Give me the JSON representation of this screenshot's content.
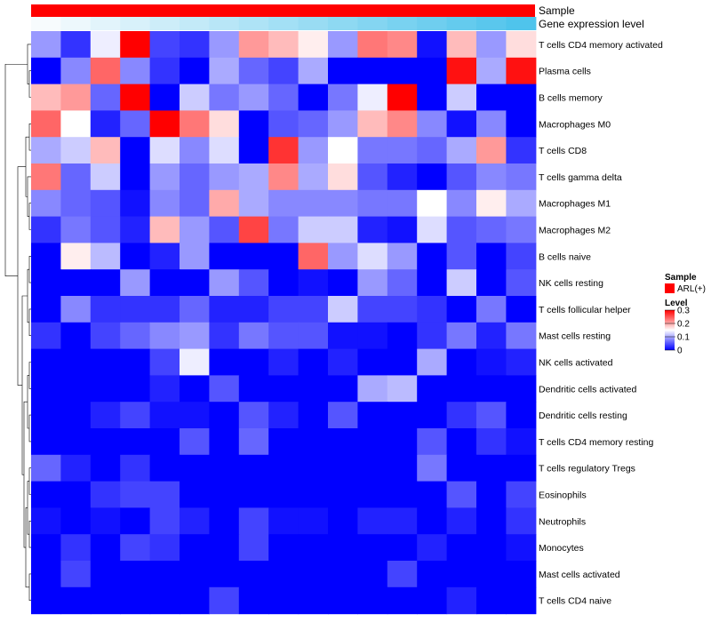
{
  "chart_data": {
    "type": "heatmap",
    "annotations": [
      {
        "name": "Sample",
        "color": "#ff0000"
      },
      {
        "name": "Gene expression level",
        "gradient": [
          "#f7fbfd",
          "#4fc4ec"
        ]
      }
    ],
    "rows": [
      "T cells CD4 memory activated",
      "Plasma cells",
      "B cells memory",
      "Macrophages M0",
      "T cells CD8",
      "T cells gamma delta",
      "Macrophages M1",
      "Macrophages M2",
      "B cells naive",
      "NK cells resting",
      "T cells follicular helper",
      "Mast cells resting",
      "NK cells activated",
      "Dendritic cells activated",
      "Dendritic cells resting",
      "T cells CD4 memory resting",
      "T cells regulatory  Tregs",
      "Eosinophils",
      "Neutrophils",
      "Monocytes",
      "Mast cells activated",
      "T cells CD4 naive"
    ],
    "values": [
      [
        0.09,
        0.03,
        0.14,
        0.3,
        0.04,
        0.03,
        0.09,
        0.21,
        0.19,
        0.16,
        0.09,
        0.23,
        0.22,
        0.01,
        0.19,
        0.09,
        0.17
      ],
      [
        0.0,
        0.08,
        0.24,
        0.08,
        0.03,
        0.0,
        0.1,
        0.06,
        0.04,
        0.1,
        0.0,
        0.0,
        0.0,
        0.0,
        0.29,
        0.1,
        0.29
      ],
      [
        0.19,
        0.21,
        0.06,
        0.3,
        0.0,
        0.12,
        0.07,
        0.09,
        0.06,
        0.0,
        0.07,
        0.14,
        0.3,
        0.0,
        0.12,
        0.0,
        0.0
      ],
      [
        0.24,
        0.15,
        0.02,
        0.06,
        0.3,
        0.23,
        0.17,
        0.0,
        0.05,
        0.06,
        0.09,
        0.19,
        0.22,
        0.08,
        0.01,
        0.08,
        0.0
      ],
      [
        0.1,
        0.12,
        0.19,
        0.0,
        0.13,
        0.08,
        0.13,
        0.0,
        0.27,
        0.09,
        0.15,
        0.07,
        0.07,
        0.06,
        0.1,
        0.21,
        0.03
      ],
      [
        0.23,
        0.06,
        0.12,
        0.0,
        0.09,
        0.06,
        0.09,
        0.1,
        0.22,
        0.1,
        0.17,
        0.05,
        0.02,
        0.0,
        0.05,
        0.08,
        0.07
      ],
      [
        0.08,
        0.06,
        0.05,
        0.01,
        0.08,
        0.06,
        0.2,
        0.1,
        0.08,
        0.08,
        0.08,
        0.07,
        0.07,
        0.15,
        0.08,
        0.16,
        0.1
      ],
      [
        0.03,
        0.07,
        0.05,
        0.02,
        0.19,
        0.09,
        0.05,
        0.26,
        0.07,
        0.12,
        0.12,
        0.02,
        0.01,
        0.13,
        0.05,
        0.06,
        0.07
      ],
      [
        0.0,
        0.16,
        0.11,
        0.0,
        0.02,
        0.09,
        0.0,
        0.0,
        0.0,
        0.24,
        0.09,
        0.13,
        0.09,
        0.0,
        0.05,
        0.0,
        0.04
      ],
      [
        0.0,
        0.0,
        0.0,
        0.09,
        0.0,
        0.0,
        0.09,
        0.05,
        0.0,
        0.01,
        0.0,
        0.09,
        0.06,
        0.0,
        0.12,
        0.0,
        0.05
      ],
      [
        0.0,
        0.08,
        0.03,
        0.03,
        0.03,
        0.06,
        0.02,
        0.02,
        0.04,
        0.04,
        0.12,
        0.04,
        0.04,
        0.03,
        0.0,
        0.07,
        0.0
      ],
      [
        0.03,
        0.0,
        0.04,
        0.06,
        0.08,
        0.09,
        0.03,
        0.07,
        0.05,
        0.05,
        0.01,
        0.01,
        0.0,
        0.03,
        0.07,
        0.02,
        0.07
      ],
      [
        0.0,
        0.0,
        0.0,
        0.0,
        0.04,
        0.14,
        0.0,
        0.0,
        0.02,
        0.0,
        0.02,
        0.0,
        0.0,
        0.1,
        0.0,
        0.01,
        0.02
      ],
      [
        0.0,
        0.0,
        0.0,
        0.0,
        0.02,
        0.0,
        0.05,
        0.0,
        0.0,
        0.0,
        0.0,
        0.1,
        0.11,
        0.0,
        0.0,
        0.0,
        0.0
      ],
      [
        0.0,
        0.0,
        0.02,
        0.04,
        0.01,
        0.01,
        0.0,
        0.05,
        0.02,
        0.0,
        0.05,
        0.0,
        0.0,
        0.0,
        0.03,
        0.05,
        0.0
      ],
      [
        0.0,
        0.0,
        0.0,
        0.0,
        0.0,
        0.05,
        0.0,
        0.06,
        0.0,
        0.0,
        0.0,
        0.0,
        0.0,
        0.05,
        0.0,
        0.03,
        0.01
      ],
      [
        0.06,
        0.02,
        0.0,
        0.03,
        0.0,
        0.0,
        0.0,
        0.0,
        0.0,
        0.0,
        0.0,
        0.0,
        0.0,
        0.07,
        0.0,
        0.0,
        0.0
      ],
      [
        0.0,
        0.0,
        0.03,
        0.04,
        0.04,
        0.0,
        0.0,
        0.0,
        0.0,
        0.0,
        0.0,
        0.0,
        0.0,
        0.0,
        0.05,
        0.0,
        0.04
      ],
      [
        0.01,
        0.0,
        0.01,
        0.0,
        0.04,
        0.02,
        0.0,
        0.04,
        0.01,
        0.01,
        0.0,
        0.02,
        0.02,
        0.0,
        0.02,
        0.0,
        0.03
      ],
      [
        0.0,
        0.03,
        0.0,
        0.04,
        0.03,
        0.0,
        0.0,
        0.04,
        0.0,
        0.0,
        0.0,
        0.0,
        0.0,
        0.02,
        0.0,
        0.0,
        0.01
      ],
      [
        0.0,
        0.04,
        0.0,
        0.0,
        0.0,
        0.0,
        0.0,
        0.0,
        0.0,
        0.0,
        0.0,
        0.0,
        0.04,
        0.0,
        0.0,
        0.0,
        0.0
      ],
      [
        0.0,
        0.0,
        0.0,
        0.0,
        0.0,
        0.0,
        0.04,
        0.0,
        0.0,
        0.0,
        0.0,
        0.0,
        0.0,
        0.0,
        0.02,
        0.0,
        0.0
      ]
    ],
    "legend": {
      "sample_title": "Sample",
      "sample_item": "ARL(+)",
      "sample_color": "#ff0000",
      "level_title": "Level",
      "ticks": [
        "0.3",
        "0.2",
        "0.1",
        "0"
      ],
      "tick_values": [
        0.3,
        0.2,
        0.1,
        0
      ],
      "colors": {
        "low": "#0000ff",
        "mid": "#ffffff",
        "high": "#ff0000"
      },
      "range": [
        0,
        0.3
      ]
    }
  }
}
